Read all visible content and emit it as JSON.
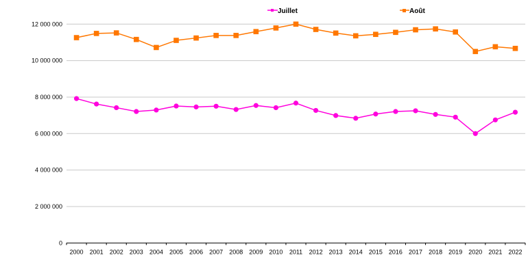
{
  "chart_data": {
    "type": "line",
    "title": "",
    "xlabel": "",
    "ylabel": "",
    "ylim": [
      0,
      12000000
    ],
    "grid": true,
    "legend_position": "top",
    "y_ticks": [
      "0",
      "2 000 000",
      "4 000 000",
      "6 000 000",
      "8 000 000",
      "10 000 000",
      "12 000 000"
    ],
    "y_tick_values": [
      0,
      2000000,
      4000000,
      6000000,
      8000000,
      10000000,
      12000000
    ],
    "categories": [
      "2000",
      "2001",
      "2002",
      "2003",
      "2004",
      "2005",
      "2006",
      "2007",
      "2008",
      "2009",
      "2010",
      "2011",
      "2012",
      "2013",
      "2014",
      "2015",
      "2016",
      "2017",
      "2018",
      "2019",
      "2020",
      "2021",
      "2022"
    ],
    "series": [
      {
        "name": "Juillet",
        "color": "#ff00dd",
        "marker": "circle",
        "values": [
          7920000,
          7620000,
          7420000,
          7210000,
          7290000,
          7510000,
          7460000,
          7500000,
          7320000,
          7540000,
          7420000,
          7670000,
          7270000,
          6990000,
          6840000,
          7070000,
          7210000,
          7250000,
          7050000,
          6900000,
          6000000,
          6750000,
          7170000
        ]
      },
      {
        "name": "Août",
        "color": "#ff7700",
        "marker": "square",
        "values": [
          11260000,
          11490000,
          11520000,
          11160000,
          10720000,
          11110000,
          11240000,
          11380000,
          11380000,
          11590000,
          11790000,
          12000000,
          11710000,
          11510000,
          11360000,
          11440000,
          11550000,
          11690000,
          11740000,
          11570000,
          10500000,
          10760000,
          10670000
        ]
      }
    ]
  }
}
